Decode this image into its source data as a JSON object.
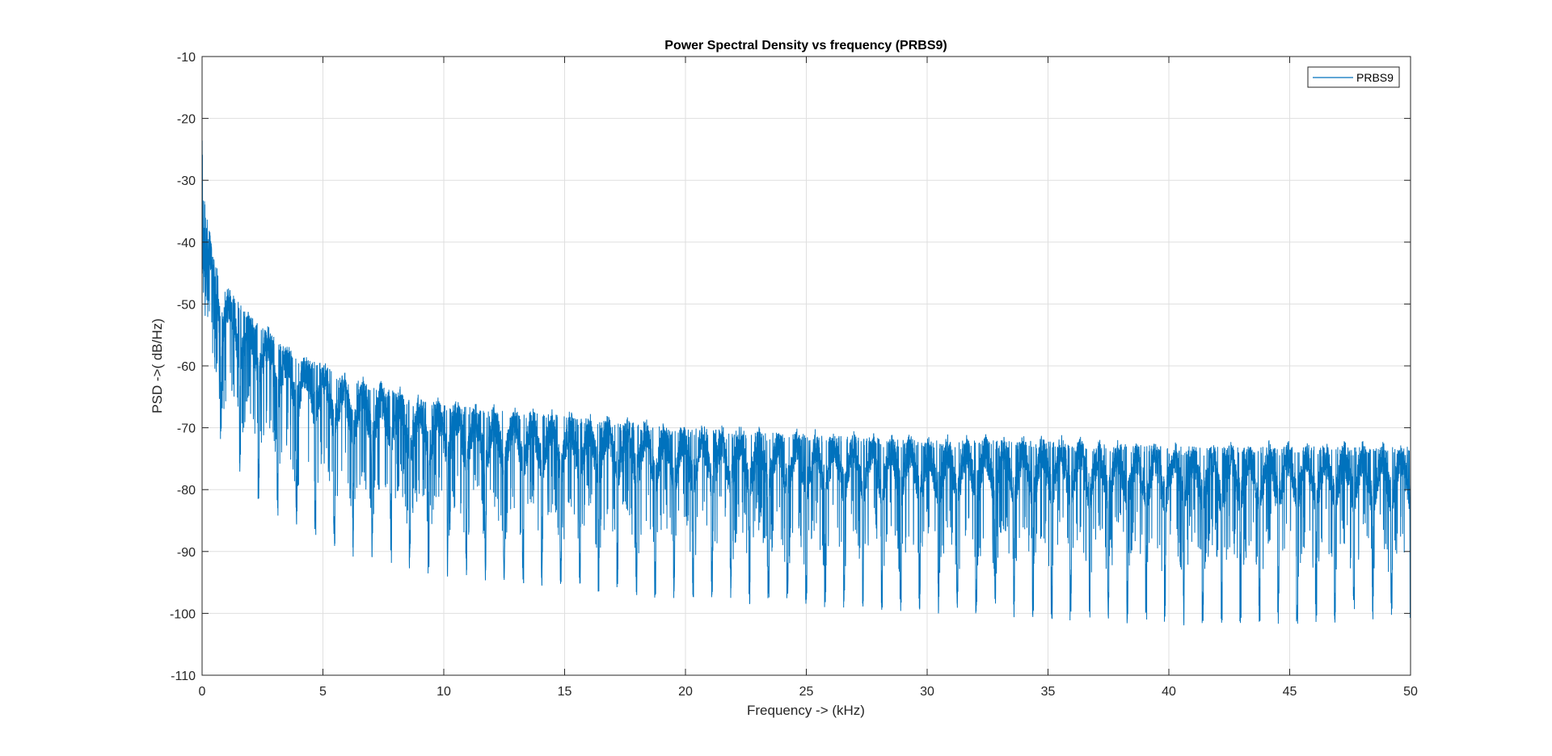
{
  "chart_data": {
    "type": "line",
    "title": "Power Spectral Density vs frequency (PRBS9)",
    "xlabel": "Frequency -> (kHz)",
    "ylabel": "PSD ->( dB/Hz)",
    "xlim": [
      0,
      50
    ],
    "ylim": [
      -110,
      -10
    ],
    "xticks": [
      0,
      5,
      10,
      15,
      20,
      25,
      30,
      35,
      40,
      45,
      50
    ],
    "yticks": [
      -10,
      -20,
      -30,
      -40,
      -50,
      -60,
      -70,
      -80,
      -90,
      -100,
      -110
    ],
    "grid": true,
    "legend_position": "top-right",
    "series": [
      {
        "name": "PRBS9",
        "color": "#0072BD",
        "lobe_spacing_khz": 0.7812,
        "x": [
          0,
          0.05,
          0.1,
          0.15,
          0.2,
          0.3,
          0.4,
          0.5,
          0.6,
          0.7,
          0.78,
          0.9,
          1.0,
          1.2,
          1.4,
          1.56,
          1.8,
          2.0,
          2.34,
          2.6,
          3.0,
          3.12,
          3.5,
          3.9,
          4.3,
          4.69,
          5.1,
          5.47,
          6.0,
          6.25,
          7.0,
          7.03,
          8.0,
          8.6,
          10.0,
          12.0,
          15.0,
          20.0,
          25.0,
          30.0,
          35.0,
          40.0,
          45.0,
          50.0
        ],
        "envelope_top_db": [
          -17,
          -26,
          -33,
          -35,
          -36,
          -38,
          -41,
          -43,
          -44,
          -45,
          -46,
          -47,
          -47,
          -48,
          -49,
          -50,
          -51,
          -52,
          -53,
          -54,
          -55,
          -56,
          -57,
          -58,
          -59,
          -59,
          -60,
          -61,
          -62,
          -62,
          -63,
          -63,
          -64,
          -65,
          -66,
          -67,
          -68,
          -70,
          -71,
          -72,
          -72,
          -73,
          -73,
          -73
        ],
        "null_floor_db": [
          -54,
          -54,
          -54,
          -54,
          -54,
          -60,
          -66,
          -70,
          -72,
          -72,
          -72,
          -75,
          -76,
          -77,
          -78,
          -78,
          -80,
          -81,
          -82,
          -83,
          -84,
          -85,
          -86,
          -86,
          -87,
          -88,
          -89,
          -90,
          -90,
          -91,
          -91,
          -92,
          -92,
          -93,
          -94,
          -95,
          -96,
          -98,
          -99,
          -100,
          -101,
          -102,
          -102,
          -101
        ]
      }
    ]
  }
}
